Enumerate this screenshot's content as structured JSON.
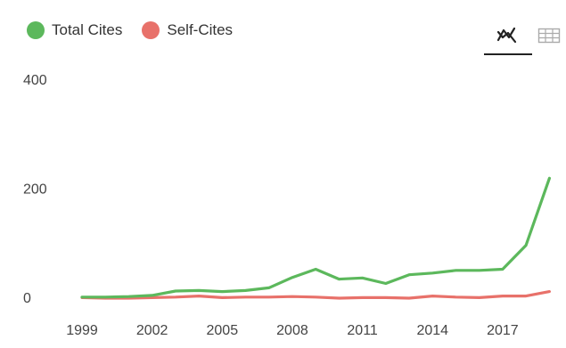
{
  "legend": {
    "total_label": "Total Cites",
    "self_label": "Self-Cites"
  },
  "colors": {
    "total": "#5cb85c",
    "self": "#e8716a"
  },
  "view_toggle": {
    "active": "chart-icon",
    "inactive": "table-icon"
  },
  "chart_data": {
    "type": "line",
    "title": "",
    "xlabel": "",
    "ylabel": "",
    "x_tick_labels": [
      "1999",
      "2002",
      "2005",
      "2008",
      "2011",
      "2014",
      "2017"
    ],
    "y_tick_labels": [
      "0",
      "200",
      "400"
    ],
    "ylim": [
      0,
      400
    ],
    "xlim": [
      1999,
      2018.3
    ],
    "grid": false,
    "legend_position": "top-left",
    "x": [
      1999,
      2000,
      2001,
      2002,
      2003,
      2004,
      2005,
      2006,
      2007,
      2008,
      2009,
      2010,
      2011,
      2012,
      2013,
      2014,
      2015,
      2016,
      2017,
      2018,
      2019
    ],
    "series": [
      {
        "name": "Total Cites",
        "color": "#5cb85c",
        "values": [
          2,
          2,
          3,
          5,
          13,
          14,
          12,
          14,
          19,
          38,
          53,
          35,
          37,
          27,
          43,
          46,
          51,
          51,
          53,
          97,
          220
        ]
      },
      {
        "name": "Self-Cites",
        "color": "#e8716a",
        "values": [
          1,
          0,
          0,
          1,
          2,
          4,
          1,
          2,
          2,
          3,
          2,
          0,
          1,
          1,
          0,
          4,
          2,
          1,
          4,
          4,
          12
        ]
      }
    ]
  }
}
